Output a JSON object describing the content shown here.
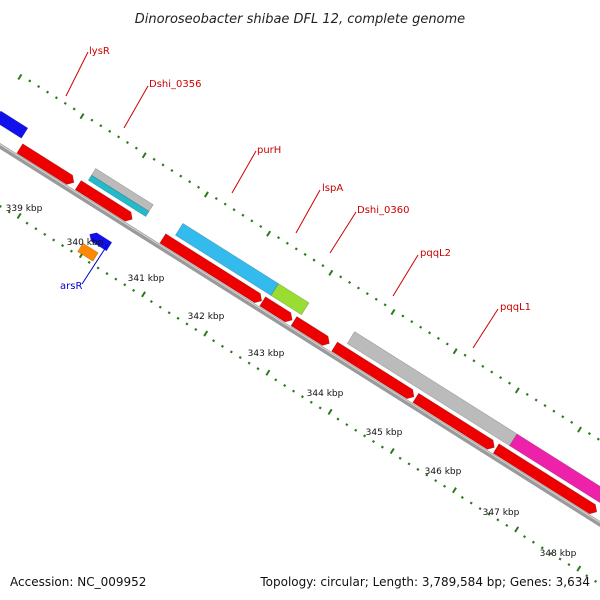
{
  "title": "Dinoroseobacter shibae DFL 12, complete genome",
  "accession": "Accession: NC_009952",
  "topology": "Topology: circular; Length: 3,789,584 bp; Genes: 3,634",
  "colors": {
    "backbone": "#8c8c8c",
    "tick": "#2a7a1a",
    "label_forward": "#cc0000",
    "label_reverse": "#0000cc",
    "red": "#ee0000",
    "cyan": "#22bbcc",
    "gray": "#bbbbbb",
    "skyblue": "#33bbee",
    "lime": "#99dd33",
    "magenta": "#ee22aa",
    "blue": "#1111ee",
    "orange": "#ff8800"
  },
  "kbp_labels": [
    {
      "text": "339 kbp"
    },
    {
      "text": "340 kbp"
    },
    {
      "text": "341 kbp"
    },
    {
      "text": "342 kbp"
    },
    {
      "text": "343 kbp"
    },
    {
      "text": "344 kbp"
    },
    {
      "text": "345 kbp"
    },
    {
      "text": "346 kbp"
    },
    {
      "text": "347 kbp"
    },
    {
      "text": "348 kbp"
    }
  ],
  "gene_labels": [
    {
      "text": "lysR",
      "strand": "forward"
    },
    {
      "text": "Dshi_0356",
      "strand": "forward"
    },
    {
      "text": "purH",
      "strand": "forward"
    },
    {
      "text": "lspA",
      "strand": "forward"
    },
    {
      "text": "Dshi_0360",
      "strand": "forward"
    },
    {
      "text": "pqqL2",
      "strand": "forward"
    },
    {
      "text": "pqqL1",
      "strand": "forward"
    },
    {
      "text": "arsR",
      "strand": "reverse"
    }
  ]
}
